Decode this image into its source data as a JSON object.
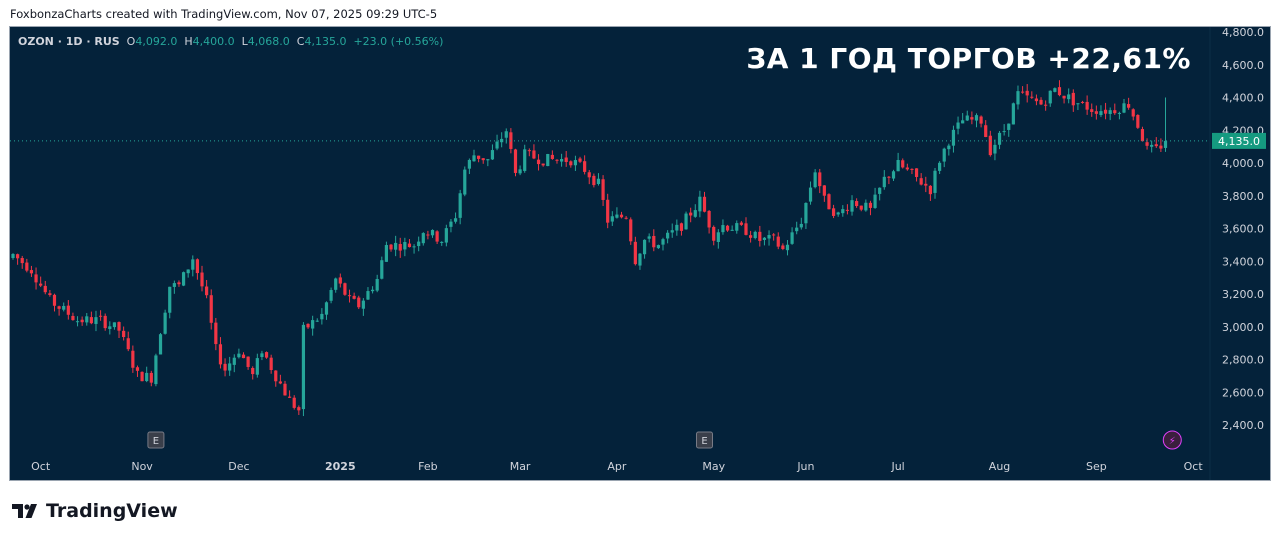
{
  "credit": "FoxbonzaCharts created with TradingView.com, Nov 07, 2025 09:29 UTC-5",
  "legend": {
    "symbol": "OZON · 1D · RUS",
    "o_label": "O",
    "o": "4,092.0",
    "h_label": "H",
    "h": "4,400.0",
    "l_label": "L",
    "l": "4,068.0",
    "c_label": "C",
    "c": "4,135.0",
    "change": "+23.0 (+0.56%)"
  },
  "headline": "ЗА 1 ГОД ТОРГОВ +22,61%",
  "logo": "TradingView",
  "colors": {
    "up": "#26a69a",
    "down": "#f23645",
    "bg": "#04223a",
    "last": "#159a80"
  },
  "chart_data": {
    "type": "candlestick",
    "ylim": [
      2300,
      4900
    ],
    "y_ticks": [
      "4,800.0",
      "4,600.0",
      "4,400.0",
      "4,200.0",
      "4,000.0",
      "3,800.0",
      "3,600.0",
      "3,400.0",
      "3,200.0",
      "3,000.0",
      "2,800.0",
      "2,600.0",
      "2,400.0"
    ],
    "y_tick_values": [
      4800,
      4600,
      4400,
      4200,
      4000,
      3800,
      3600,
      3400,
      3200,
      3000,
      2800,
      2600,
      2400
    ],
    "x_ticks": [
      {
        "label": "Oct",
        "day": 6
      },
      {
        "label": "Nov",
        "day": 28
      },
      {
        "label": "Dec",
        "day": 49
      },
      {
        "label": "2025",
        "day": 71
      },
      {
        "label": "Feb",
        "day": 90
      },
      {
        "label": "Mar",
        "day": 110
      },
      {
        "label": "Apr",
        "day": 131
      },
      {
        "label": "May",
        "day": 152
      },
      {
        "label": "Jun",
        "day": 172
      },
      {
        "label": "Jul",
        "day": 192
      },
      {
        "label": "Aug",
        "day": 214
      },
      {
        "label": "Sep",
        "day": 235
      },
      {
        "label": "Oct",
        "day": 256
      }
    ],
    "last_price": 4135.0,
    "last_price_label": "4,135.0",
    "earnings_markers": [
      {
        "label": "E",
        "day": 31
      },
      {
        "label": "E",
        "day": 150
      }
    ],
    "dividend_marker": {
      "label": "⚡",
      "day": 248
    },
    "price_path_anchors": [
      [
        0,
        3440
      ],
      [
        4,
        3350
      ],
      [
        8,
        3160
      ],
      [
        14,
        3040
      ],
      [
        19,
        3040
      ],
      [
        23,
        2980
      ],
      [
        27,
        2705
      ],
      [
        30,
        2690
      ],
      [
        32,
        2980
      ],
      [
        34,
        3250
      ],
      [
        36,
        3250
      ],
      [
        39,
        3420
      ],
      [
        42,
        3160
      ],
      [
        44,
        2860
      ],
      [
        46,
        2740
      ],
      [
        49,
        2860
      ],
      [
        52,
        2700
      ],
      [
        54,
        2860
      ],
      [
        57,
        2700
      ],
      [
        60,
        2550
      ],
      [
        62,
        2490
      ],
      [
        63,
        2980
      ],
      [
        67,
        3070
      ],
      [
        70,
        3290
      ],
      [
        73,
        3160
      ],
      [
        75,
        3130
      ],
      [
        79,
        3290
      ],
      [
        81,
        3500
      ],
      [
        84,
        3500
      ],
      [
        87,
        3500
      ],
      [
        89,
        3590
      ],
      [
        93,
        3530
      ],
      [
        96,
        3680
      ],
      [
        98,
        3960
      ],
      [
        100,
        4050
      ],
      [
        103,
        4020
      ],
      [
        107,
        4200
      ],
      [
        109,
        3930
      ],
      [
        111,
        4050
      ],
      [
        115,
        4020
      ],
      [
        121,
        4020
      ],
      [
        124,
        3960
      ],
      [
        127,
        3870
      ],
      [
        129,
        3650
      ],
      [
        133,
        3680
      ],
      [
        135,
        3410
      ],
      [
        137,
        3530
      ],
      [
        140,
        3500
      ],
      [
        145,
        3620
      ],
      [
        149,
        3770
      ],
      [
        152,
        3560
      ],
      [
        154,
        3620
      ],
      [
        159,
        3590
      ],
      [
        162,
        3530
      ],
      [
        165,
        3530
      ],
      [
        167,
        3470
      ],
      [
        171,
        3650
      ],
      [
        174,
        3960
      ],
      [
        176,
        3770
      ],
      [
        179,
        3680
      ],
      [
        182,
        3770
      ],
      [
        186,
        3710
      ],
      [
        189,
        3900
      ],
      [
        192,
        3990
      ],
      [
        195,
        3930
      ],
      [
        199,
        3840
      ],
      [
        201,
        4020
      ],
      [
        203,
        4140
      ],
      [
        206,
        4260
      ],
      [
        210,
        4260
      ],
      [
        212,
        4080
      ],
      [
        215,
        4200
      ],
      [
        218,
        4420
      ],
      [
        223,
        4360
      ],
      [
        226,
        4450
      ],
      [
        230,
        4380
      ],
      [
        234,
        4330
      ],
      [
        238,
        4320
      ],
      [
        242,
        4360
      ],
      [
        244,
        4230
      ],
      [
        246,
        4080
      ],
      [
        248,
        4080
      ],
      [
        250,
        4135
      ]
    ],
    "last_candle": {
      "open": 4092.0,
      "high": 4400.0,
      "low": 4068.0,
      "close": 4135.0
    }
  }
}
